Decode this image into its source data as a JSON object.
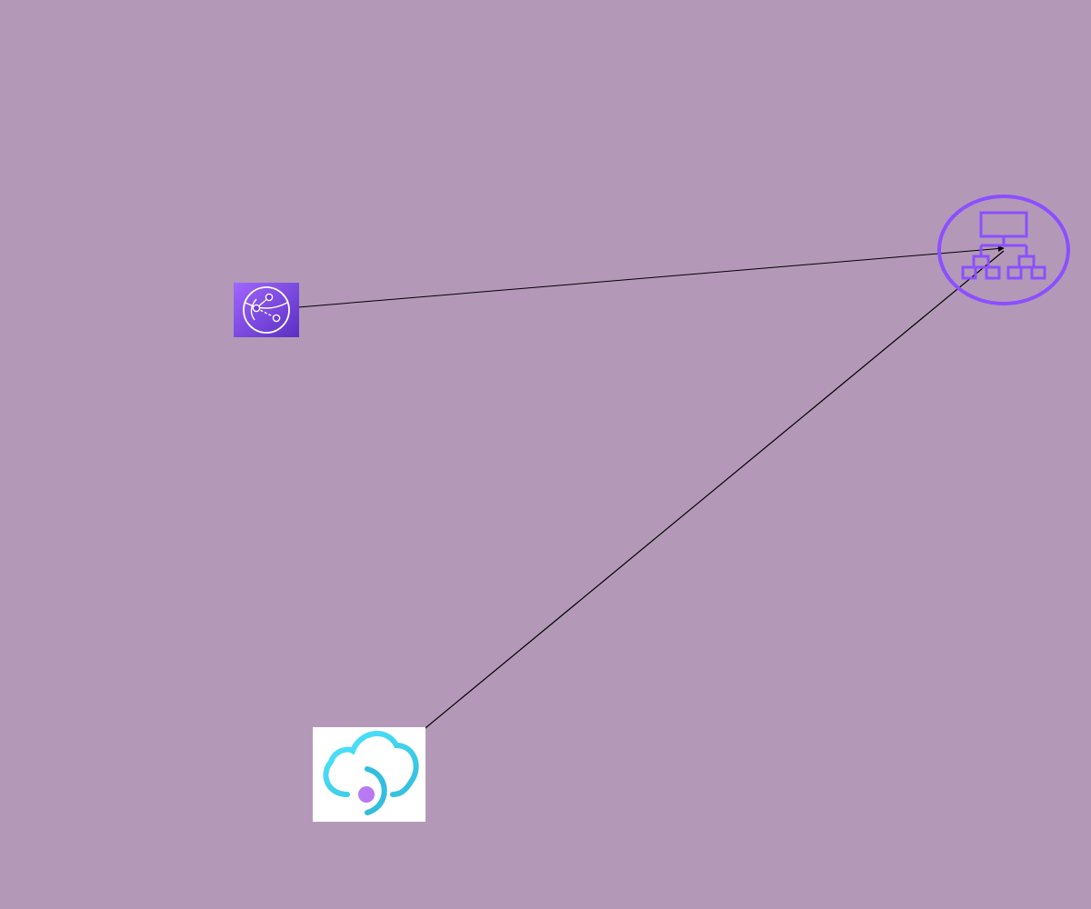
{
  "diagram": {
    "background": "#b399b7",
    "nodes": [
      {
        "id": "cloudfront",
        "icon": "aws-cloudfront-icon",
        "colors": {
          "fill_top": "#a166ff",
          "fill_bottom": "#5a2fc2",
          "stroke": "#ffffff"
        }
      },
      {
        "id": "load-balancer",
        "icon": "network-hierarchy-icon",
        "colors": {
          "stroke": "#8c4fff"
        }
      },
      {
        "id": "azure-cloud-service",
        "icon": "azure-cloud-service-icon",
        "colors": {
          "tile": "#ffffff",
          "cloud": "#50e6ff",
          "accent": "#32bedd",
          "dot": "#b77af4"
        }
      }
    ],
    "edges": [
      {
        "from": "cloudfront",
        "to": "load-balancer",
        "color": "#000000"
      },
      {
        "from": "load-balancer",
        "to": "azure-cloud-service",
        "color": "#000000"
      }
    ]
  }
}
